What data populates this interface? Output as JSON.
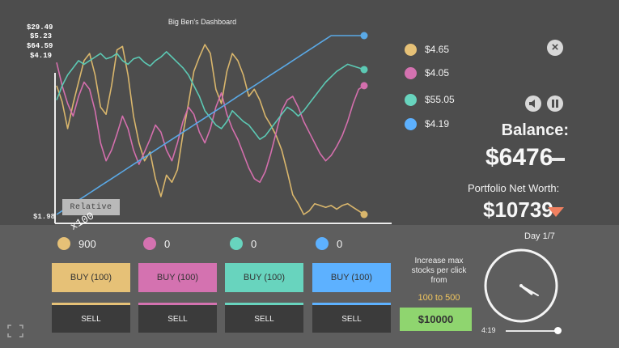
{
  "chart": {
    "title": "Big Ben's Dashboard",
    "y_labels": [
      {
        "text": "$29.49",
        "color": "#e6c177"
      },
      {
        "text": "$5.23",
        "color": "#d472b0"
      },
      {
        "text": "$64.59",
        "color": "#68d4be"
      },
      {
        "text": "$4.19",
        "color": "#68c4ff"
      }
    ],
    "y_min_label": "$1.98",
    "relative_label": "Relative",
    "x_label": "x100"
  },
  "chart_data": {
    "type": "line",
    "title": "Big Ben's Dashboard",
    "series": [
      {
        "color": "#d9b66c",
        "values": [
          0.72,
          0.63,
          0.48,
          0.62,
          0.74,
          0.86,
          0.9,
          0.78,
          0.6,
          0.56,
          0.72,
          0.92,
          0.94,
          0.78,
          0.55,
          0.4,
          0.3,
          0.35,
          0.2,
          0.1,
          0.22,
          0.18,
          0.25,
          0.45,
          0.62,
          0.8,
          0.88,
          0.95,
          0.9,
          0.7,
          0.62,
          0.8,
          0.9,
          0.86,
          0.78,
          0.66,
          0.7,
          0.64,
          0.55,
          0.5,
          0.44,
          0.36,
          0.24,
          0.11,
          0.06,
          0.0,
          0.02,
          0.06,
          0.05,
          0.04,
          0.05,
          0.03,
          0.05,
          0.06,
          0.04,
          0.02,
          0.0
        ]
      },
      {
        "color": "#d46fad",
        "values": [
          0.85,
          0.72,
          0.62,
          0.55,
          0.66,
          0.74,
          0.7,
          0.58,
          0.4,
          0.3,
          0.36,
          0.45,
          0.55,
          0.48,
          0.36,
          0.28,
          0.35,
          0.42,
          0.5,
          0.46,
          0.36,
          0.3,
          0.4,
          0.52,
          0.6,
          0.56,
          0.46,
          0.4,
          0.48,
          0.6,
          0.68,
          0.56,
          0.48,
          0.42,
          0.34,
          0.26,
          0.2,
          0.18,
          0.24,
          0.34,
          0.46,
          0.58,
          0.64,
          0.66,
          0.6,
          0.52,
          0.46,
          0.4,
          0.34,
          0.3,
          0.33,
          0.38,
          0.44,
          0.52,
          0.62,
          0.7,
          0.72
        ]
      },
      {
        "color": "#5cc9b4",
        "values": [
          0.64,
          0.72,
          0.78,
          0.82,
          0.86,
          0.84,
          0.86,
          0.88,
          0.9,
          0.87,
          0.88,
          0.9,
          0.86,
          0.84,
          0.87,
          0.88,
          0.85,
          0.83,
          0.86,
          0.88,
          0.91,
          0.88,
          0.85,
          0.82,
          0.78,
          0.72,
          0.66,
          0.58,
          0.54,
          0.5,
          0.48,
          0.52,
          0.58,
          0.55,
          0.52,
          0.5,
          0.46,
          0.42,
          0.44,
          0.48,
          0.52,
          0.56,
          0.6,
          0.58,
          0.55,
          0.58,
          0.62,
          0.66,
          0.7,
          0.74,
          0.77,
          0.8,
          0.82,
          0.84,
          0.83,
          0.82,
          0.81
        ]
      },
      {
        "color": "#5aa9e6",
        "values": [
          0.0,
          0.02,
          0.04,
          0.06,
          0.08,
          0.1,
          0.12,
          0.14,
          0.16,
          0.18,
          0.2,
          0.22,
          0.24,
          0.26,
          0.28,
          0.3,
          0.32,
          0.34,
          0.36,
          0.38,
          0.4,
          0.42,
          0.44,
          0.46,
          0.48,
          0.5,
          0.52,
          0.54,
          0.56,
          0.58,
          0.6,
          0.62,
          0.64,
          0.66,
          0.68,
          0.7,
          0.72,
          0.74,
          0.76,
          0.78,
          0.8,
          0.82,
          0.84,
          0.86,
          0.88,
          0.9,
          0.92,
          0.94,
          0.96,
          0.98,
          1.0,
          1.0,
          1.0,
          1.0,
          1.0,
          1.0,
          1.0
        ]
      }
    ]
  },
  "legend": [
    {
      "label": "$4.65",
      "color": "#e6c177"
    },
    {
      "label": "$4.05",
      "color": "#d472b0"
    },
    {
      "label": "$55.05",
      "color": "#68d4be"
    },
    {
      "label": "$4.19",
      "color": "#5db1ff"
    }
  ],
  "panel": {
    "close_icon": "close-icon",
    "sound_icon": "sound-icon",
    "pause_icon": "pause-icon",
    "balance_label": "Balance:",
    "balance_value": "$6476",
    "net_label": "Portfolio Net Worth:",
    "net_value": "$10739",
    "net_trend": "down",
    "net_trend_color": "#f08060"
  },
  "stocks": [
    {
      "held": "900",
      "color": "#e6c177",
      "button_color": "#e6c177",
      "buy_label": "BUY (100)",
      "sell_label": "SELL"
    },
    {
      "held": "0",
      "color": "#d472b0",
      "button_color": "#d472b0",
      "buy_label": "BUY (100)",
      "sell_label": "SELL"
    },
    {
      "held": "0",
      "color": "#68d4be",
      "button_color": "#68d4be",
      "buy_label": "BUY (100)",
      "sell_label": "SELL"
    },
    {
      "held": "0",
      "color": "#5db1ff",
      "button_color": "#5db1ff",
      "buy_label": "BUY (100)",
      "sell_label": "SELL"
    }
  ],
  "upgrade": {
    "text_line1": "Increase max",
    "text_line2": "stocks per click",
    "text_line3": "from",
    "range": "100 to 500",
    "button_label": "$10000"
  },
  "clock": {
    "day_label": "Day 1/7",
    "time": "4:19",
    "progress": 0.92
  }
}
